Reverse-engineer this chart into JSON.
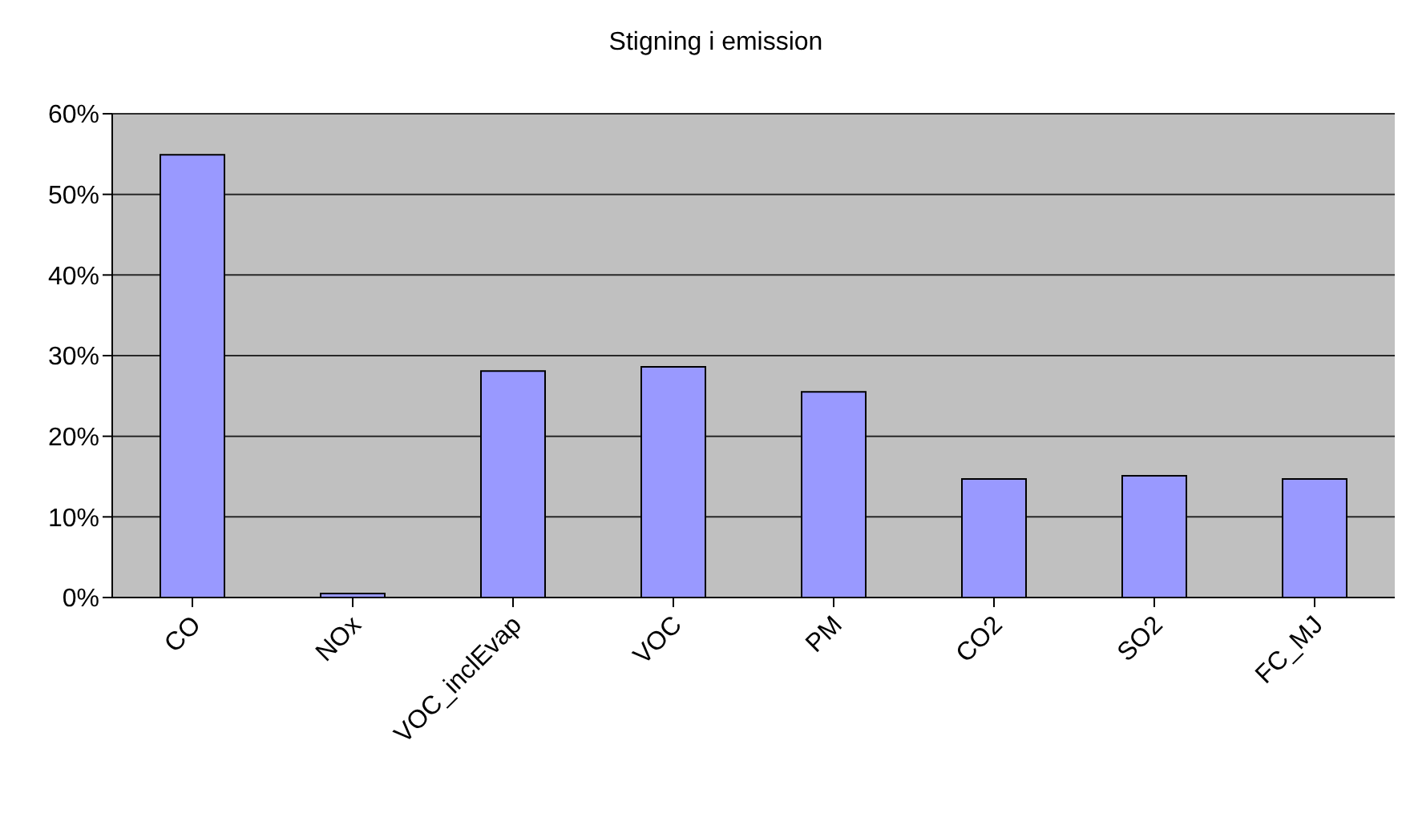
{
  "chart_data": {
    "type": "bar",
    "title": "Stigning i emission",
    "categories": [
      "CO",
      "NOx",
      "VOC_inclEvap",
      "VOC",
      "PM",
      "CO2",
      "SO2",
      "FC_MJ"
    ],
    "values": [
      54.9,
      0.5,
      28.1,
      28.6,
      25.5,
      14.7,
      15.1,
      14.7
    ],
    "color": "#9999ff",
    "ylim": [
      0,
      60
    ],
    "yticks": [
      {
        "value": 0,
        "label": "0%"
      },
      {
        "value": 10,
        "label": "10%"
      },
      {
        "value": 20,
        "label": "20%"
      },
      {
        "value": 30,
        "label": "30%"
      },
      {
        "value": 40,
        "label": "40%"
      },
      {
        "value": 50,
        "label": "50%"
      },
      {
        "value": 60,
        "label": "60%"
      }
    ],
    "grid": "y",
    "legend": false
  }
}
